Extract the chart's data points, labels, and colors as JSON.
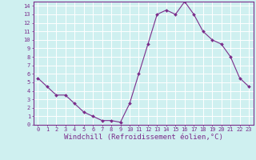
{
  "x": [
    0,
    1,
    2,
    3,
    4,
    5,
    6,
    7,
    8,
    9,
    10,
    11,
    12,
    13,
    14,
    15,
    16,
    17,
    18,
    19,
    20,
    21,
    22,
    23
  ],
  "y": [
    5.5,
    4.5,
    3.5,
    3.5,
    2.5,
    1.5,
    1.0,
    0.5,
    0.5,
    0.3,
    2.5,
    6.0,
    9.5,
    13.0,
    13.5,
    13.0,
    14.5,
    13.0,
    11.0,
    10.0,
    9.5,
    8.0,
    5.5,
    4.5
  ],
  "line_color": "#7b2d8b",
  "marker": "D",
  "marker_size": 2.0,
  "bg_color": "#cff0f0",
  "grid_color": "#ffffff",
  "xlabel": "Windchill (Refroidissement éolien,°C)",
  "xlabel_color": "#7b2d8b",
  "xlim": [
    -0.5,
    23.5
  ],
  "ylim": [
    0,
    14.5
  ],
  "xticks": [
    0,
    1,
    2,
    3,
    4,
    5,
    6,
    7,
    8,
    9,
    10,
    11,
    12,
    13,
    14,
    15,
    16,
    17,
    18,
    19,
    20,
    21,
    22,
    23
  ],
  "yticks": [
    0,
    1,
    2,
    3,
    4,
    5,
    6,
    7,
    8,
    9,
    10,
    11,
    12,
    13,
    14
  ],
  "tick_label_size": 5.0,
  "xlabel_size": 6.5,
  "axis_color": "#7b2d8b",
  "spine_color": "#7b2d8b",
  "linewidth": 0.8
}
